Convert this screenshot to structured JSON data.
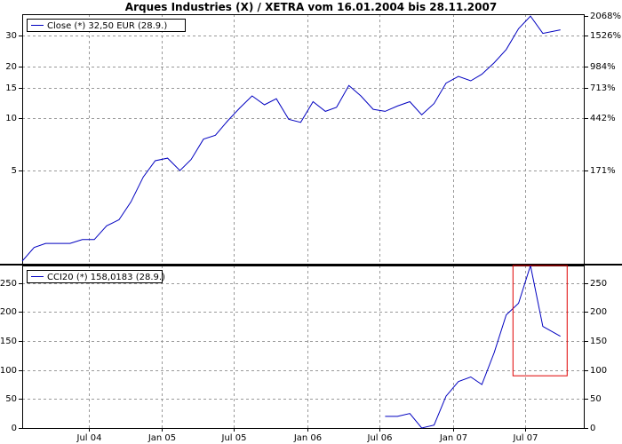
{
  "title": "Arques Industries (X) / XETRA vom 16.01.2004 bis 28.11.2007",
  "colors": {
    "line": "#0000c0",
    "highlight": "#e00000",
    "grid": "#999999"
  },
  "chart_data": [
    {
      "type": "line",
      "scale": "log",
      "legend": "Close (*) 32,50 EUR (28.9.)",
      "legend_position": "top-left",
      "grid": true,
      "ylim": [
        1.45,
        40
      ],
      "left_ticks": [
        {
          "value": 5,
          "label": "5"
        },
        {
          "value": 10,
          "label": "10"
        },
        {
          "value": 15,
          "label": "15"
        },
        {
          "value": 20,
          "label": "20"
        },
        {
          "value": 30,
          "label": "30"
        }
      ],
      "right_ticks": [
        {
          "value": 5.0,
          "label": "171%"
        },
        {
          "value": 10.0,
          "label": "442%"
        },
        {
          "value": 15.0,
          "label": "713%"
        },
        {
          "value": 20.0,
          "label": "984%"
        },
        {
          "value": 30.0,
          "label": "1526%"
        },
        {
          "value": 40.0,
          "label": "2068%"
        }
      ],
      "x_labels": [
        "Jul 04",
        "Jan 05",
        "Jul 05",
        "Jan 06",
        "Jul 06",
        "Jan 07",
        "Jul 07"
      ],
      "x": [
        "2004-01-16",
        "2004-02-15",
        "2004-03-15",
        "2004-04-15",
        "2004-05-15",
        "2004-06-15",
        "2004-07-15",
        "2004-08-15",
        "2004-09-15",
        "2004-10-15",
        "2004-11-15",
        "2004-12-15",
        "2005-01-15",
        "2005-02-15",
        "2005-03-15",
        "2005-04-15",
        "2005-05-15",
        "2005-06-15",
        "2005-07-15",
        "2005-08-15",
        "2005-09-15",
        "2005-10-15",
        "2005-11-15",
        "2005-12-15",
        "2006-01-15",
        "2006-02-15",
        "2006-03-15",
        "2006-04-15",
        "2006-05-15",
        "2006-06-15",
        "2006-07-15",
        "2006-08-15",
        "2006-09-15",
        "2006-10-15",
        "2006-11-15",
        "2006-12-15",
        "2007-01-15",
        "2007-02-15",
        "2007-03-15",
        "2007-04-15",
        "2007-05-15",
        "2007-06-15",
        "2007-07-15",
        "2007-08-15",
        "2007-09-28"
      ],
      "values": [
        1.5,
        1.8,
        1.9,
        1.9,
        1.9,
        2.0,
        2.0,
        2.4,
        2.6,
        3.3,
        4.6,
        5.7,
        5.9,
        5.0,
        5.8,
        7.6,
        8.0,
        9.7,
        11.5,
        13.5,
        12.0,
        13.0,
        9.9,
        9.5,
        12.5,
        11.0,
        11.6,
        15.5,
        13.5,
        11.3,
        11.0,
        11.8,
        12.5,
        10.5,
        12.2,
        16.0,
        17.5,
        16.5,
        18.0,
        21.0,
        25.0,
        33.0,
        39.0,
        31.0,
        32.5
      ]
    },
    {
      "type": "line",
      "legend": "CCI20 (*) 158,0183 (28.9.)",
      "legend_position": "top-left",
      "grid": true,
      "ylim": [
        0,
        280
      ],
      "ticks": [
        0,
        50,
        100,
        150,
        200,
        250
      ],
      "x": [
        "2006-07-15",
        "2006-08-15",
        "2006-09-15",
        "2006-10-15",
        "2006-11-15",
        "2006-12-15",
        "2007-01-15",
        "2007-02-15",
        "2007-03-15",
        "2007-04-15",
        "2007-05-15",
        "2007-06-15",
        "2007-07-15",
        "2007-08-15",
        "2007-09-28"
      ],
      "values": [
        20,
        20,
        25,
        0,
        5,
        55,
        80,
        88,
        75,
        130,
        195,
        215,
        280,
        175,
        158
      ],
      "highlight_box": {
        "x_range": [
          "2007-06-01",
          "2007-10-15"
        ],
        "y_range": [
          90,
          280
        ]
      }
    }
  ]
}
